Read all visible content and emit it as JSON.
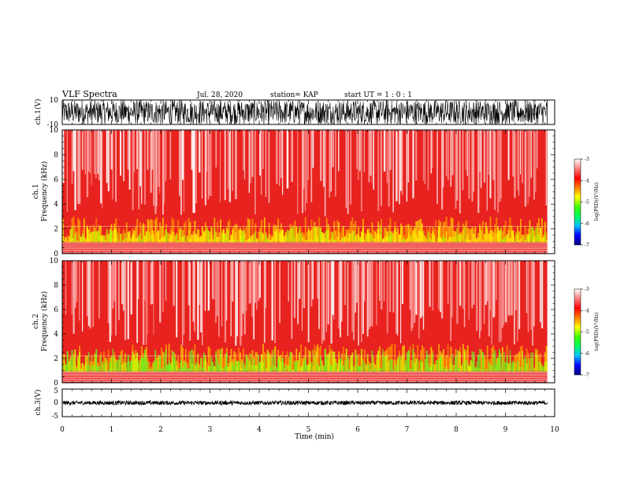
{
  "header": {
    "title": "VLF Spectra",
    "date": "Jul. 28, 2020",
    "station": "station= KAP",
    "start": "start  UT =  1 : 0  : 1"
  },
  "colors": {
    "spectrogram_base": "#e8231f",
    "background": "#ffffff",
    "trace": "#000000"
  },
  "chart_data": [
    {
      "id": "ch1-waveform",
      "type": "line",
      "ylabel": "ch.1(V)",
      "ylim": [
        -10,
        10
      ],
      "y_ticks": [
        "10",
        "-10"
      ],
      "x_range_min": [
        0,
        9.85
      ]
    },
    {
      "id": "ch1-spectrogram",
      "type": "heatmap",
      "ylabel_line1": "ch.1",
      "ylabel_line2": "Frequency  (kHz)",
      "ylim": [
        0,
        10
      ],
      "y_ticks": [
        "0",
        "2",
        "4",
        "6",
        "8",
        "10"
      ],
      "x_range_min": [
        0,
        9.85
      ],
      "colorbar": {
        "label": "log(PSD)(V²/Hz)",
        "range": [
          -7,
          -3
        ],
        "ticks": [
          "-3",
          "-4",
          "-5",
          "-6",
          "-7"
        ],
        "colors": [
          "#000080",
          "#0000ff",
          "#00c0ff",
          "#00ff60",
          "#40ff00",
          "#ffff00",
          "#ff8000",
          "#ff0000",
          "#ff8080",
          "#ffffff"
        ]
      }
    },
    {
      "id": "ch2-spectrogram",
      "type": "heatmap",
      "ylabel_line1": "ch.2",
      "ylabel_line2": "Frequency  (kHz)",
      "ylim": [
        0,
        10
      ],
      "y_ticks": [
        "0",
        "2",
        "4",
        "6",
        "8",
        "10"
      ],
      "x_range_min": [
        0,
        9.85
      ],
      "colorbar": {
        "label": "log(PSD)(V²/Hz)",
        "range": [
          -7,
          -3
        ],
        "ticks": [
          "-3",
          "-4",
          "-5",
          "-6",
          "-7"
        ],
        "colors": [
          "#000080",
          "#0000ff",
          "#00c0ff",
          "#00ff60",
          "#40ff00",
          "#ffff00",
          "#ff8000",
          "#ff0000",
          "#ff8080",
          "#ffffff"
        ]
      }
    },
    {
      "id": "ch3-waveform",
      "type": "line",
      "ylabel": "ch.3(V)",
      "ylim": [
        -5,
        5
      ],
      "y_ticks": [
        "5",
        "0",
        "-5"
      ],
      "x_range_min": [
        0,
        9.85
      ]
    }
  ],
  "time_axis": {
    "label": "Time  (min)",
    "range": [
      0,
      10
    ],
    "ticks": [
      "0",
      "1",
      "2",
      "3",
      "4",
      "5",
      "6",
      "7",
      "8",
      "9",
      "10"
    ]
  }
}
